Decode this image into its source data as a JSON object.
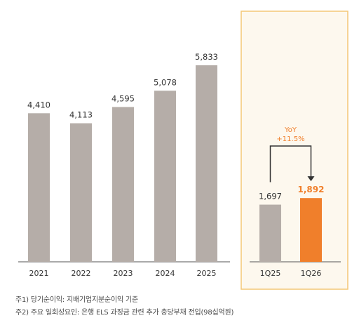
{
  "chart_data": {
    "type": "bar",
    "annual": {
      "categories": [
        "2021",
        "2022",
        "2023",
        "2024",
        "2025"
      ],
      "values": [
        4410,
        4113,
        4595,
        5078,
        5833
      ],
      "value_labels": [
        "4,410",
        "4,113",
        "4,595",
        "5,078",
        "5,833"
      ]
    },
    "quarterly": {
      "categories": [
        "1Q25",
        "1Q26"
      ],
      "values": [
        1697,
        1892
      ],
      "value_labels": [
        "1,697",
        "1,892"
      ],
      "yoy_label": "YoY",
      "yoy_value": "+11.5%"
    },
    "ylim": [
      0,
      6000
    ]
  },
  "colors": {
    "bar_gray": "#b5ada8",
    "highlight": "#f07f2b",
    "panel_border": "#f3c777",
    "panel_bg": "#fdf8ee",
    "axis": "#555555",
    "text": "#333333"
  },
  "notes": [
    "주1) 당기순이익: 지배기업지분순이익 기준",
    "주2) 주요 일회성요인: 은행 ELS 과징금 관련 추가 충당부채 전입(98십억원)"
  ]
}
